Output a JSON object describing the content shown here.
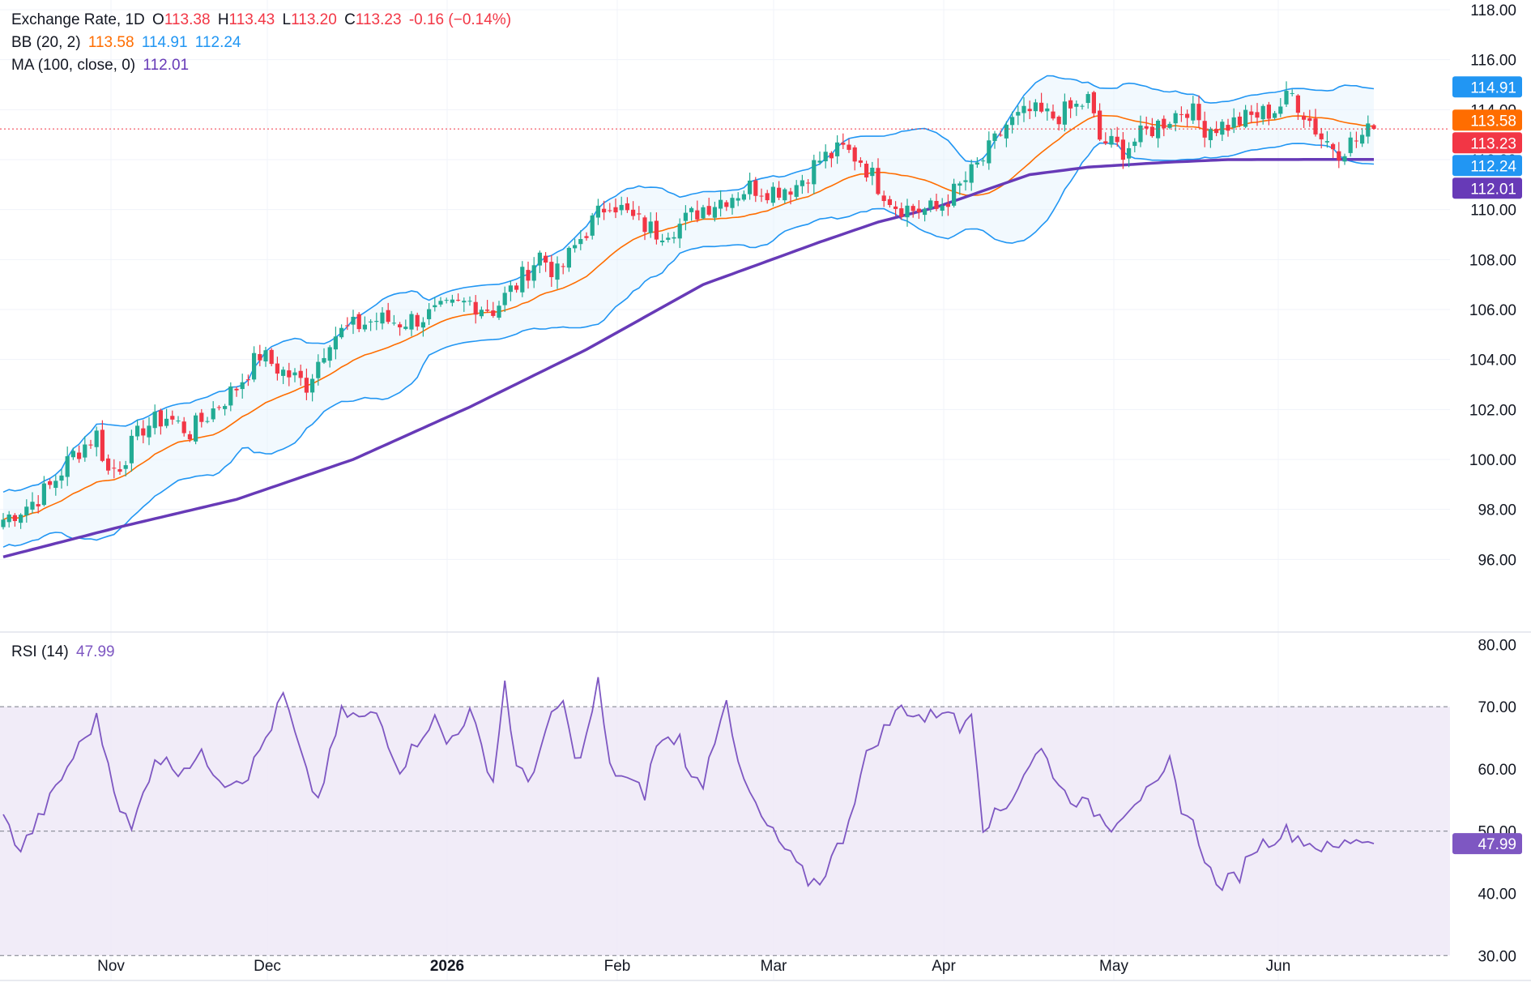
{
  "legend": {
    "main": {
      "name": "Exchange Rate, 1D",
      "o_label": "O",
      "o": "113.38",
      "h_label": "H",
      "h": "113.43",
      "l_label": "L",
      "l": "113.20",
      "c_label": "C",
      "c": "113.23",
      "change": "-0.16 (−0.14%)"
    },
    "bb": {
      "name": "BB (20, 2)",
      "mid": "113.58",
      "upper": "114.91",
      "lower": "112.24"
    },
    "ma": {
      "name": "MA (100, close, 0)",
      "value": "112.01"
    },
    "rsi": {
      "name": "RSI (14)",
      "value": "47.99"
    }
  },
  "colors": {
    "up": "#22ab94",
    "down": "#f23645",
    "bb_band": "#2196f3",
    "bb_mid": "#ff6d00",
    "ma": "#673ab7",
    "rsi": "#7e57c2",
    "rsi_fill": "#ede7f6",
    "bb_fill": "#e3f2fd",
    "last": "#f23645"
  },
  "chart_data": [
    {
      "type": "candlestick",
      "panel": "price",
      "ylim": [
        94.0,
        118.0
      ],
      "y_ticks": [
        "96.00",
        "98.00",
        "100.00",
        "102.00",
        "104.00",
        "106.00",
        "108.00",
        "110.00",
        "112.00",
        "114.00",
        "116.00",
        "118.00"
      ],
      "x_labels": [
        "Nov",
        "Dec",
        "2026",
        "Feb",
        "Mar",
        "Apr",
        "May",
        "Jun"
      ],
      "price_tags": [
        "114.91",
        "113.58",
        "113.23",
        "112.24",
        "112.01"
      ],
      "close_anchors": [
        [
          0,
          97.6
        ],
        [
          5,
          98.3
        ],
        [
          8,
          98.9
        ],
        [
          12,
          100.2
        ],
        [
          16,
          101.0
        ],
        [
          18,
          99.5
        ],
        [
          20,
          99.8
        ],
        [
          24,
          101.3
        ],
        [
          28,
          101.7
        ],
        [
          32,
          101.1
        ],
        [
          36,
          102.0
        ],
        [
          40,
          102.9
        ],
        [
          44,
          104.2
        ],
        [
          48,
          103.5
        ],
        [
          52,
          103.0
        ],
        [
          56,
          104.9
        ],
        [
          60,
          105.3
        ],
        [
          64,
          105.6
        ],
        [
          68,
          105.5
        ],
        [
          72,
          105.7
        ],
        [
          76,
          106.0
        ],
        [
          80,
          106.3
        ],
        [
          84,
          106.0
        ],
        [
          88,
          107.0
        ],
        [
          92,
          108.2
        ],
        [
          95,
          107.4
        ],
        [
          98,
          108.5
        ],
        [
          100,
          109.2
        ],
        [
          104,
          110.4
        ],
        [
          108,
          109.6
        ],
        [
          112,
          109.1
        ],
        [
          116,
          109.4
        ],
        [
          120,
          110.1
        ],
        [
          124,
          110.5
        ],
        [
          128,
          110.9
        ],
        [
          132,
          110.8
        ],
        [
          136,
          111.0
        ],
        [
          140,
          112.0
        ],
        [
          144,
          112.4
        ],
        [
          147,
          112.0
        ],
        [
          150,
          111.0
        ],
        [
          153,
          110.2
        ],
        [
          156,
          110.0
        ],
        [
          160,
          110.0
        ],
        [
          164,
          110.9
        ],
        [
          168,
          112.0
        ],
        [
          172,
          113.4
        ],
        [
          176,
          113.9
        ],
        [
          180,
          113.7
        ],
        [
          184,
          114.1
        ],
        [
          186,
          114.4
        ],
        [
          188,
          112.8
        ],
        [
          192,
          112.4
        ],
        [
          196,
          113.1
        ],
        [
          200,
          113.7
        ],
        [
          203,
          114.1
        ],
        [
          206,
          113.3
        ],
        [
          210,
          113.4
        ],
        [
          214,
          113.7
        ],
        [
          218,
          114.0
        ],
        [
          221,
          114.6
        ],
        [
          223,
          113.9
        ],
        [
          226,
          112.9
        ],
        [
          229,
          112.4
        ],
        [
          232,
          112.8
        ],
        [
          235,
          113.23
        ]
      ],
      "ma100_anchors": [
        [
          0,
          96.1
        ],
        [
          20,
          97.3
        ],
        [
          40,
          98.4
        ],
        [
          60,
          100.0
        ],
        [
          80,
          102.1
        ],
        [
          100,
          104.4
        ],
        [
          120,
          107.0
        ],
        [
          140,
          108.7
        ],
        [
          150,
          109.5
        ],
        [
          160,
          110.1
        ],
        [
          176,
          111.4
        ],
        [
          186,
          111.7
        ],
        [
          200,
          111.9
        ],
        [
          210,
          112.0
        ],
        [
          235,
          112.01
        ]
      ],
      "last_candle": {
        "open": 113.38,
        "high": 113.43,
        "low": 113.2,
        "close": 113.23
      }
    },
    {
      "type": "line",
      "panel": "rsi",
      "ylim": [
        26.0,
        82.0
      ],
      "y_ticks": [
        "30.00",
        "40.00",
        "50.00",
        "60.00",
        "70.00",
        "80.00"
      ],
      "bands": [
        30,
        50,
        70
      ],
      "value_tag": "47.99",
      "anchors": [
        [
          0,
          52
        ],
        [
          3,
          47
        ],
        [
          8,
          55
        ],
        [
          12,
          62
        ],
        [
          16,
          68
        ],
        [
          20,
          54
        ],
        [
          22,
          50
        ],
        [
          26,
          62
        ],
        [
          30,
          60
        ],
        [
          34,
          62
        ],
        [
          38,
          58
        ],
        [
          42,
          59
        ],
        [
          46,
          67
        ],
        [
          48,
          72
        ],
        [
          52,
          59
        ],
        [
          54,
          55
        ],
        [
          58,
          69
        ],
        [
          62,
          68
        ],
        [
          64,
          69
        ],
        [
          68,
          60
        ],
        [
          72,
          66
        ],
        [
          74,
          68
        ],
        [
          76,
          64
        ],
        [
          80,
          69
        ],
        [
          84,
          58
        ],
        [
          86,
          74
        ],
        [
          88,
          60
        ],
        [
          90,
          58
        ],
        [
          94,
          68
        ],
        [
          96,
          71
        ],
        [
          98,
          61
        ],
        [
          100,
          65
        ],
        [
          102,
          74
        ],
        [
          104,
          60
        ],
        [
          106,
          59
        ],
        [
          110,
          56
        ],
        [
          112,
          64
        ],
        [
          116,
          65
        ],
        [
          118,
          58
        ],
        [
          120,
          58
        ],
        [
          124,
          72
        ],
        [
          126,
          60
        ],
        [
          130,
          52
        ],
        [
          134,
          47
        ],
        [
          138,
          42
        ],
        [
          140,
          42
        ],
        [
          144,
          49
        ],
        [
          148,
          62
        ],
        [
          150,
          65
        ],
        [
          154,
          70
        ],
        [
          158,
          68
        ],
        [
          162,
          70
        ],
        [
          164,
          66
        ],
        [
          166,
          70
        ],
        [
          168,
          51
        ],
        [
          172,
          54
        ],
        [
          176,
          61
        ],
        [
          178,
          63
        ],
        [
          182,
          56
        ],
        [
          186,
          54
        ],
        [
          190,
          51
        ],
        [
          194,
          55
        ],
        [
          198,
          57
        ],
        [
          200,
          61
        ],
        [
          202,
          54
        ],
        [
          204,
          51
        ],
        [
          208,
          41
        ],
        [
          212,
          43
        ],
        [
          214,
          47
        ],
        [
          216,
          48
        ],
        [
          220,
          50
        ],
        [
          224,
          48
        ],
        [
          228,
          47
        ],
        [
          232,
          49
        ],
        [
          235,
          47.99
        ]
      ]
    }
  ]
}
